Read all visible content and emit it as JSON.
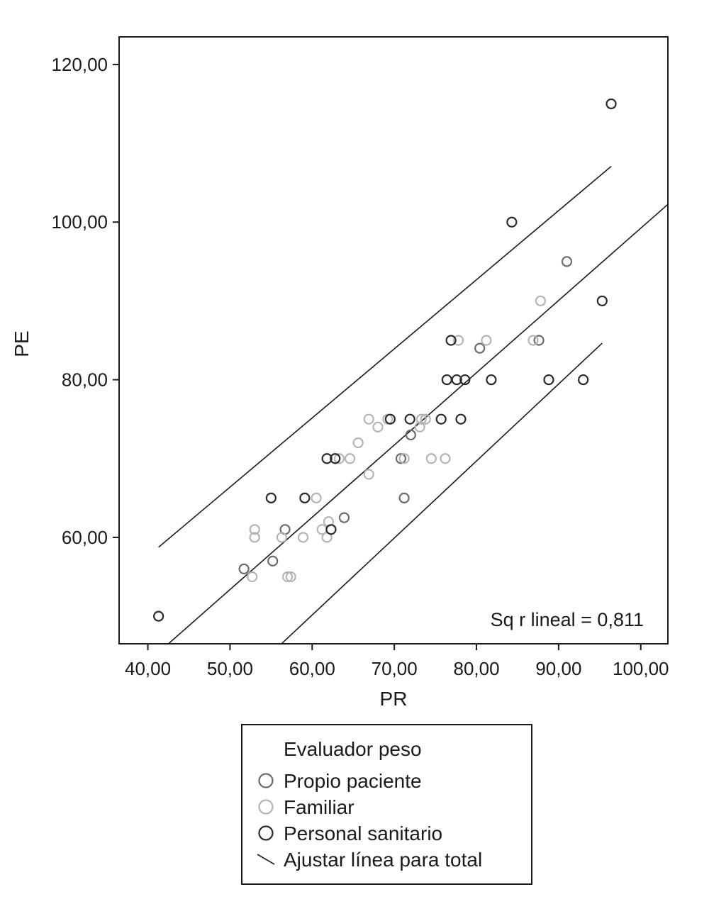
{
  "chart_data": {
    "type": "scatter",
    "xlabel": "PR",
    "ylabel": "PE",
    "xlim": [
      36.5,
      103.3
    ],
    "ylim": [
      46.5,
      123.5
    ],
    "x_ticks": [
      40,
      50,
      60,
      70,
      80,
      90,
      100
    ],
    "x_tick_labels": [
      "40,00",
      "50,00",
      "60,00",
      "70,00",
      "80,00",
      "90,00",
      "100,00"
    ],
    "y_ticks": [
      60,
      80,
      100,
      120
    ],
    "y_tick_labels": [
      "60,00",
      "80,00",
      "100,00",
      "120,00"
    ],
    "grid": false,
    "annotation": "Sq r lineal = 0,811",
    "legend": {
      "title": "Evaluador peso",
      "position": "bottom",
      "fit_label": "Ajustar línea para total"
    },
    "series": [
      {
        "name": "Propio paciente",
        "color": "#6b6b6b",
        "points": [
          [
            51.7,
            56
          ],
          [
            55.2,
            57
          ],
          [
            56.7,
            61
          ],
          [
            63.9,
            62.5
          ],
          [
            70.8,
            70
          ],
          [
            71.2,
            65
          ],
          [
            72.0,
            73
          ],
          [
            80.4,
            84
          ],
          [
            87.6,
            85
          ],
          [
            91.0,
            95
          ]
        ]
      },
      {
        "name": "Familiar",
        "color": "#b4b4b4",
        "points": [
          [
            52.7,
            55
          ],
          [
            53.0,
            60
          ],
          [
            53.0,
            61
          ],
          [
            56.3,
            60
          ],
          [
            57.0,
            55
          ],
          [
            57.4,
            55
          ],
          [
            58.9,
            60
          ],
          [
            60.5,
            65
          ],
          [
            61.2,
            61
          ],
          [
            61.8,
            60
          ],
          [
            62.0,
            62
          ],
          [
            63.3,
            70
          ],
          [
            64.6,
            70
          ],
          [
            65.6,
            72
          ],
          [
            66.9,
            68
          ],
          [
            66.9,
            75
          ],
          [
            68.0,
            74
          ],
          [
            69.2,
            75
          ],
          [
            71.2,
            70
          ],
          [
            73.1,
            74
          ],
          [
            73.3,
            75
          ],
          [
            73.8,
            75
          ],
          [
            74.5,
            70
          ],
          [
            76.2,
            70
          ],
          [
            77.8,
            85
          ],
          [
            81.2,
            85
          ],
          [
            86.9,
            85
          ],
          [
            87.8,
            90
          ]
        ]
      },
      {
        "name": "Personal sanitario",
        "color": "#2a2a2a",
        "points": [
          [
            41.3,
            50
          ],
          [
            55.0,
            65
          ],
          [
            59.1,
            65
          ],
          [
            61.8,
            70
          ],
          [
            62.3,
            61
          ],
          [
            62.8,
            70
          ],
          [
            69.5,
            75
          ],
          [
            71.9,
            75
          ],
          [
            75.7,
            75
          ],
          [
            76.4,
            80
          ],
          [
            76.9,
            85
          ],
          [
            77.6,
            80
          ],
          [
            78.1,
            75
          ],
          [
            78.6,
            80
          ],
          [
            81.8,
            80
          ],
          [
            84.3,
            100
          ],
          [
            88.8,
            80
          ],
          [
            93.0,
            80
          ],
          [
            95.3,
            90
          ],
          [
            96.4,
            115
          ]
        ]
      }
    ],
    "fit": {
      "name": "Ajustar línea para total",
      "intercept": 7.53,
      "slope": 0.917,
      "x_range": [
        40.0,
        103.3
      ],
      "ci_upper": {
        "intercept": 22.53,
        "slope": 0.877,
        "x_range": [
          41.3,
          96.4
        ]
      },
      "ci_lower": {
        "intercept": -8.47,
        "slope": 0.977,
        "x_range": [
          50.0,
          95.3
        ]
      }
    }
  }
}
